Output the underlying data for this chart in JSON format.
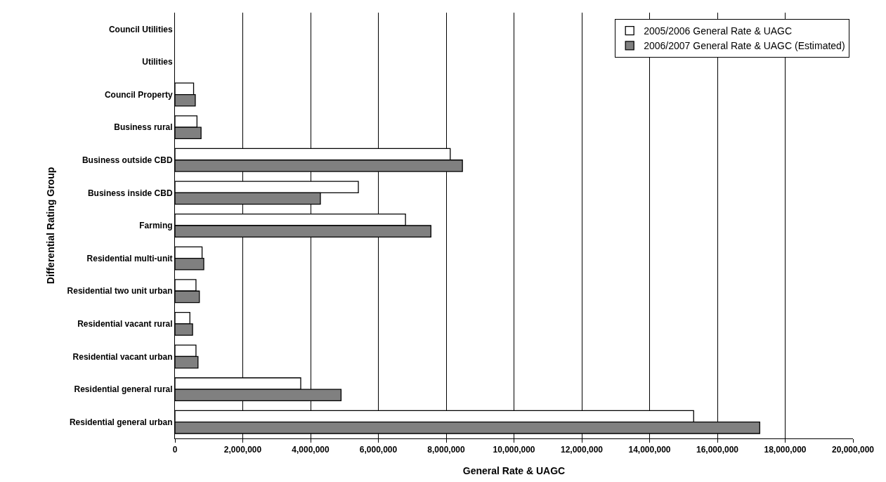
{
  "chart_data": {
    "type": "bar",
    "orientation": "horizontal",
    "xlabel": "General Rate & UAGC",
    "ylabel": "Differential Rating Group",
    "categories": [
      "Council Utilities",
      "Utilities",
      "Council Property",
      "Business rural",
      "Business outside CBD",
      "Business inside CBD",
      "Farming",
      "Residential multi-unit",
      "Residential two unit urban",
      "Residential vacant rural",
      "Residential vacant urban",
      "Residential general rural",
      "Residential general urban"
    ],
    "series": [
      {
        "name": "2005/2006 General Rate & UAGC",
        "color": "#ffffff",
        "values": [
          null,
          null,
          550000,
          650000,
          8120000,
          5410000,
          6800000,
          800000,
          620000,
          440000,
          620000,
          3710000,
          15300000
        ]
      },
      {
        "name": "2006/2007 General Rate & UAGC (Estimated)",
        "color": "#808080",
        "values": [
          null,
          null,
          600000,
          770000,
          8480000,
          4290000,
          7550000,
          850000,
          720000,
          520000,
          680000,
          4900000,
          17250000
        ]
      }
    ],
    "xlim": [
      0,
      20000000
    ],
    "xticks": [
      {
        "value": 0,
        "label": "0"
      },
      {
        "value": 2000000,
        "label": "2,000,000"
      },
      {
        "value": 4000000,
        "label": "4,000,000"
      },
      {
        "value": 6000000,
        "label": "6,000,000"
      },
      {
        "value": 8000000,
        "label": "8,000,000"
      },
      {
        "value": 10000000,
        "label": "10,000,000"
      },
      {
        "value": 12000000,
        "label": "12,000,000"
      },
      {
        "value": 14000000,
        "label": "14,000,000"
      },
      {
        "value": 16000000,
        "label": "16,000,000"
      },
      {
        "value": 18000000,
        "label": "18,000,000"
      },
      {
        "value": 20000000,
        "label": "20,000,000"
      }
    ],
    "grid": "x",
    "legend": "top right"
  }
}
